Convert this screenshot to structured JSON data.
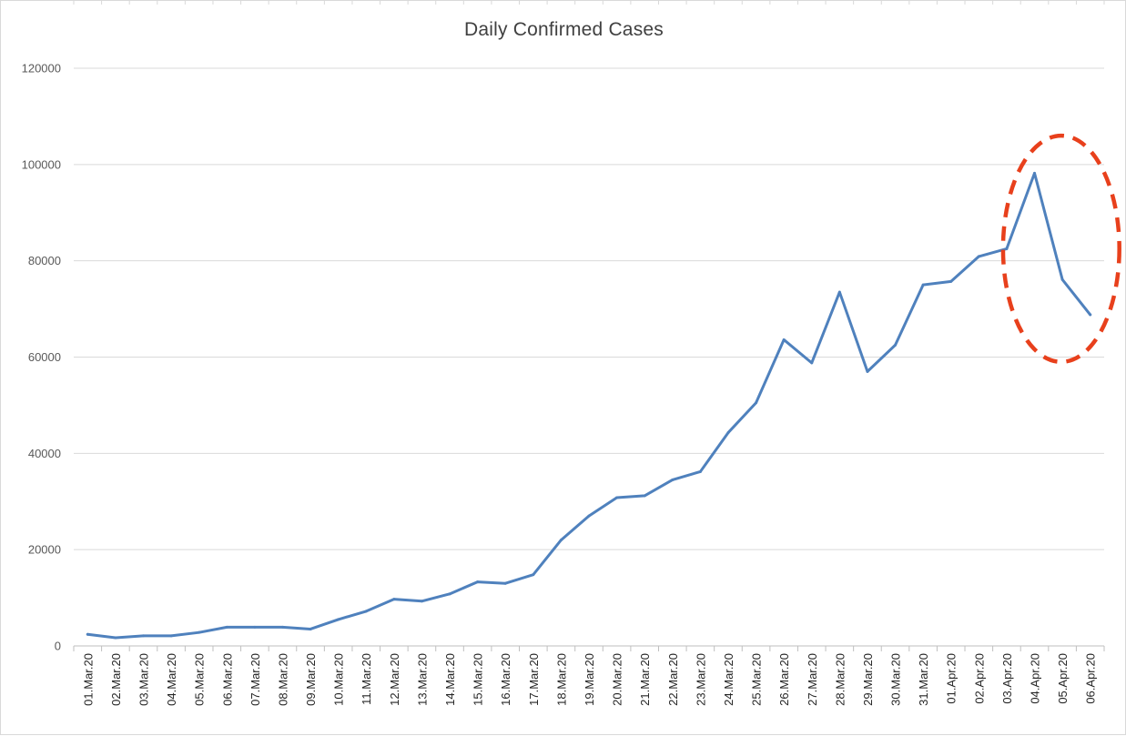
{
  "chart_data": {
    "type": "line",
    "title": "Daily Confirmed Cases",
    "xlabel": "",
    "ylabel": "",
    "ylim": [
      0,
      120000
    ],
    "yticks": [
      0,
      20000,
      40000,
      60000,
      80000,
      100000,
      120000
    ],
    "ytick_labels": [
      "0",
      "20000",
      "40000",
      "60000",
      "80000",
      "100000",
      "120000"
    ],
    "grid": true,
    "legend": "none",
    "categories": [
      "01.Mar.20",
      "02.Mar.20",
      "03.Mar.20",
      "04.Mar.20",
      "05.Mar.20",
      "06.Mar.20",
      "07.Mar.20",
      "08.Mar.20",
      "09.Mar.20",
      "10.Mar.20",
      "11.Mar.20",
      "12.Mar.20",
      "13.Mar.20",
      "14.Mar.20",
      "15.Mar.20",
      "16.Mar.20",
      "17.Mar.20",
      "18.Mar.20",
      "19.Mar.20",
      "20.Mar.20",
      "21.Mar.20",
      "22.Mar.20",
      "23.Mar.20",
      "24.Mar.20",
      "25.Mar.20",
      "26.Mar.20",
      "27.Mar.20",
      "28.Mar.20",
      "29.Mar.20",
      "30.Mar.20",
      "31.Mar.20",
      "01.Apr.20",
      "02.Apr.20",
      "03.Apr.20",
      "04.Apr.20",
      "05.Apr.20",
      "06.Apr.20"
    ],
    "series": [
      {
        "color": "#4f81bd",
        "values": [
          2400,
          1700,
          2100,
          2100,
          2800,
          3900,
          3900,
          3900,
          3500,
          5500,
          7200,
          9700,
          9300,
          10800,
          13300,
          13000,
          14800,
          22000,
          27000,
          30800,
          31200,
          34500,
          36200,
          44300,
          50500,
          63600,
          58800,
          73500,
          57000,
          62500,
          75000,
          75700,
          80900,
          82500,
          98200,
          76100,
          68800
        ]
      }
    ],
    "annotations": [
      {
        "type": "dashed-ellipse",
        "color": "#e8401c",
        "x_range": [
          "03.Apr.20",
          "06.Apr.20"
        ],
        "y_range": [
          59000,
          106000
        ]
      }
    ]
  }
}
